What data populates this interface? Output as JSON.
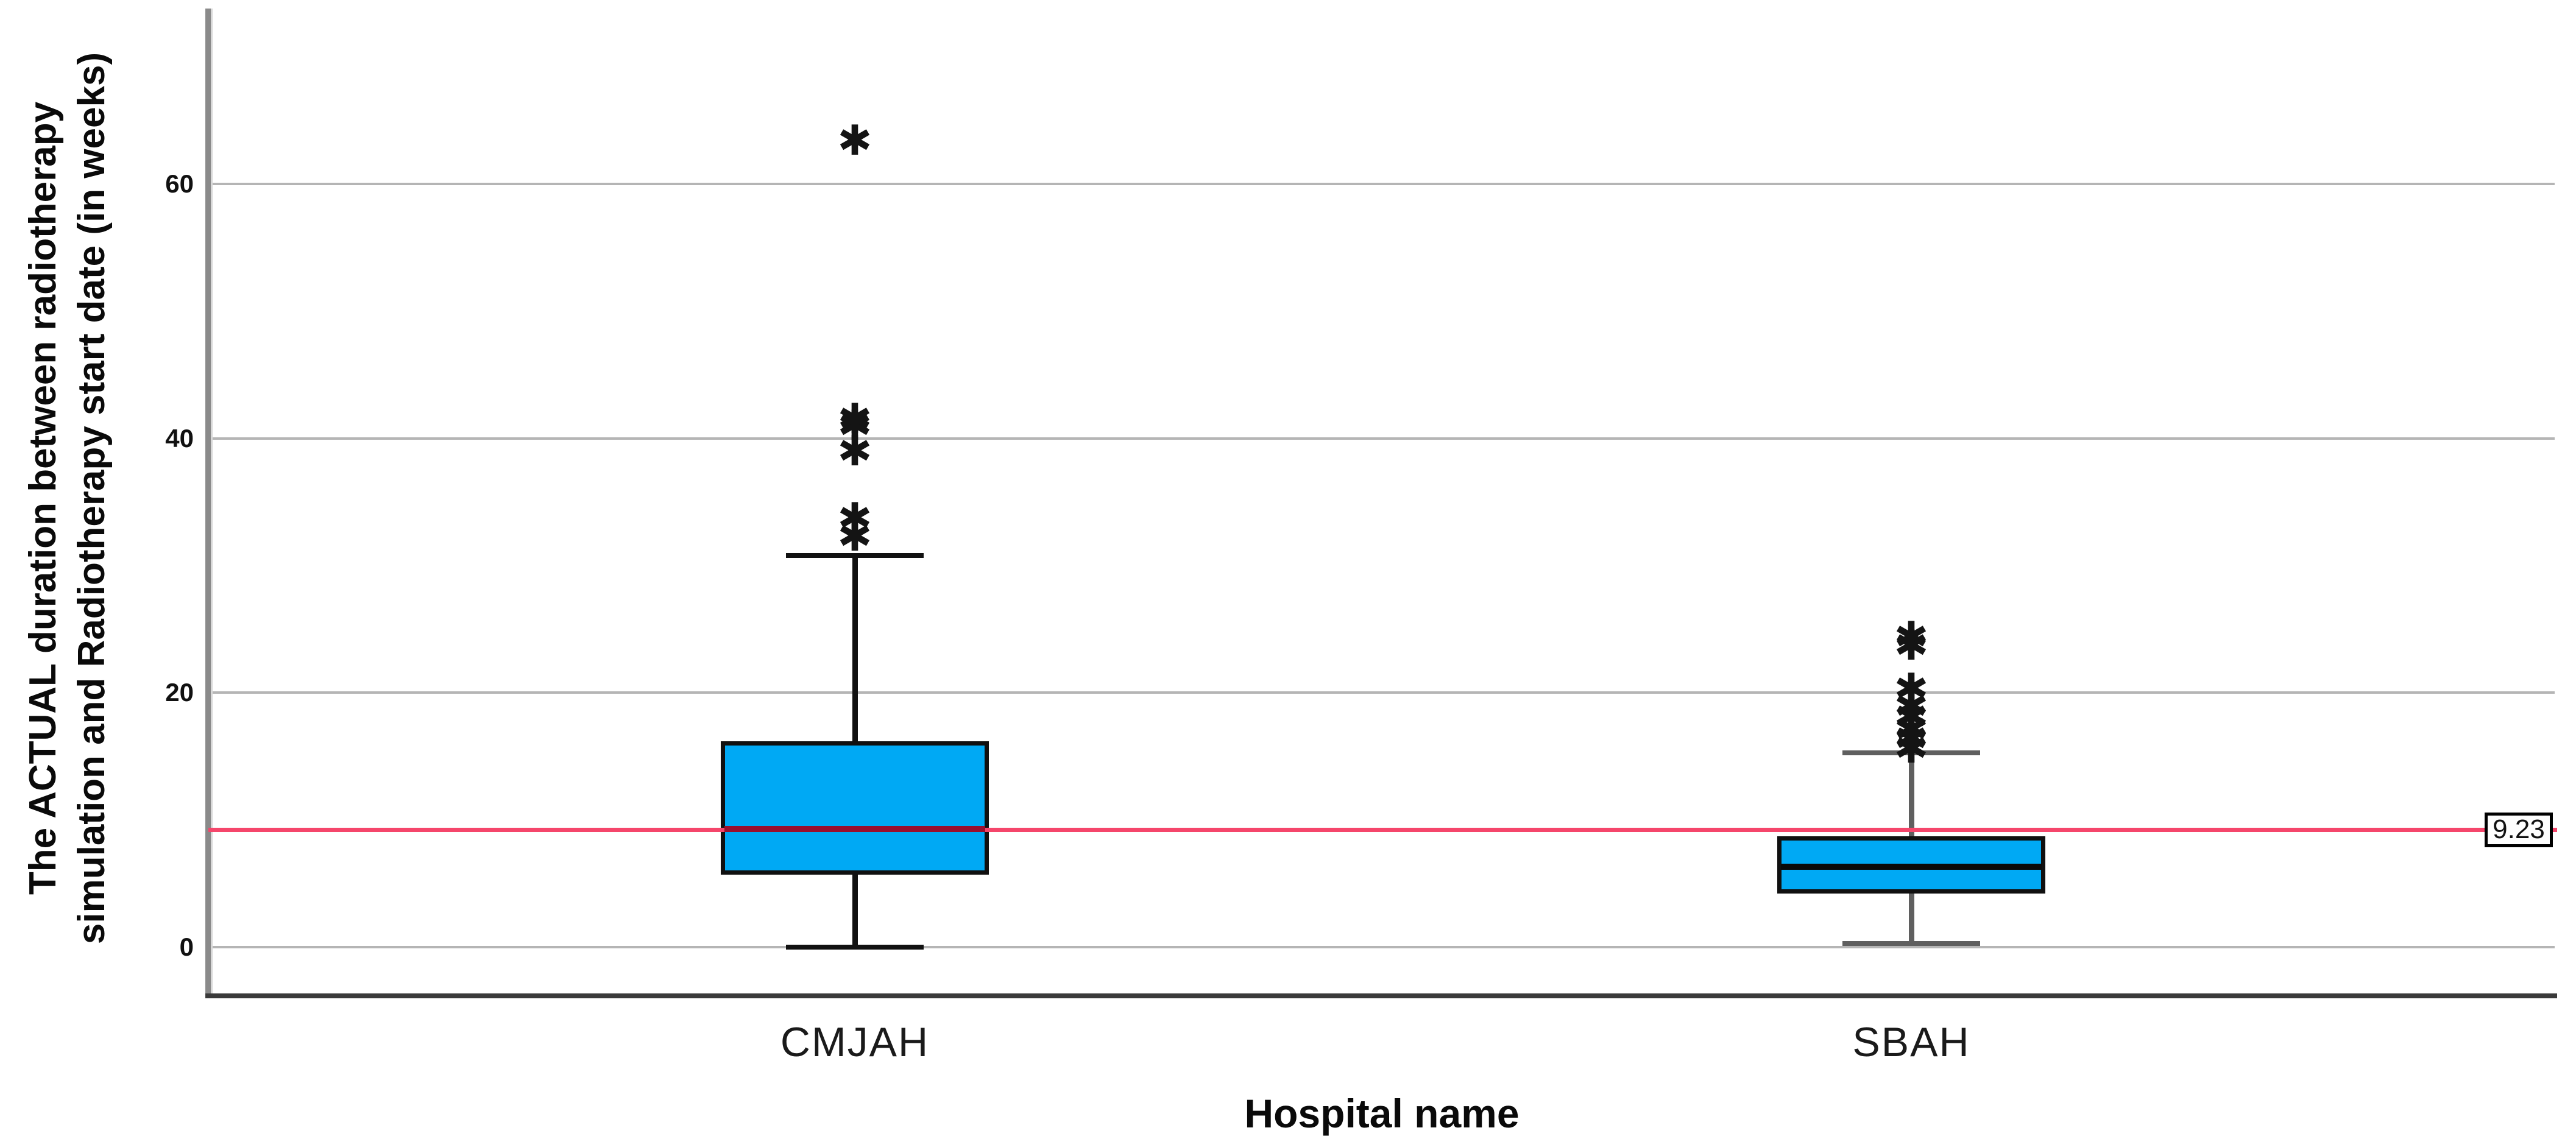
{
  "chart_data": {
    "type": "boxplot",
    "title": "",
    "xlabel": "Hospital name",
    "ylabel": "The ACTUAL duration between radiotherapy simulation and Radiotherapy start date (in weeks)",
    "ylabel_line1": "The ACTUAL duration between radiotherapy",
    "ylabel_line2": "simulation and Radiotherapy start date (in weeks)",
    "y_ticks": [
      0,
      20,
      40,
      60
    ],
    "ylim": [
      -4,
      74
    ],
    "grid": "horizontal-lines",
    "legend": "none",
    "categories": [
      "CMJAH",
      "SBAH"
    ],
    "series": [
      {
        "name": "CMJAH",
        "whisker_low": 0,
        "q1": 5.7,
        "median": 9.3,
        "q3": 16.2,
        "whisker_high": 30.8,
        "outliers": [
          32.3,
          33.7,
          39.0,
          41.0,
          41.5,
          63.4
        ]
      },
      {
        "name": "SBAH",
        "whisker_low": 0.3,
        "q1": 4.2,
        "median": 6.3,
        "q3": 8.7,
        "whisker_high": 15.3,
        "outliers": [
          15.6,
          16.4,
          17.1,
          18.1,
          18.9,
          20.3,
          23.7,
          24.4
        ]
      }
    ],
    "reference_line": {
      "value": 9.23,
      "label": "9.23"
    },
    "outlier_glyph": "✱"
  },
  "colors": {
    "box_fill": "#00A9F4",
    "box_border": "#101010",
    "reference_line": "#F5466B",
    "median_cmjah": "#9A0E2E",
    "median_sbah": "#0A0A0A",
    "whisker_cmjah": "#111111",
    "whisker_sbah": "#5F5F5F",
    "gridline": "#B5B5B5",
    "axis_spine": "#8A8A8A",
    "axis_bottom": "#3A3A3A",
    "outlier": "#141414"
  }
}
